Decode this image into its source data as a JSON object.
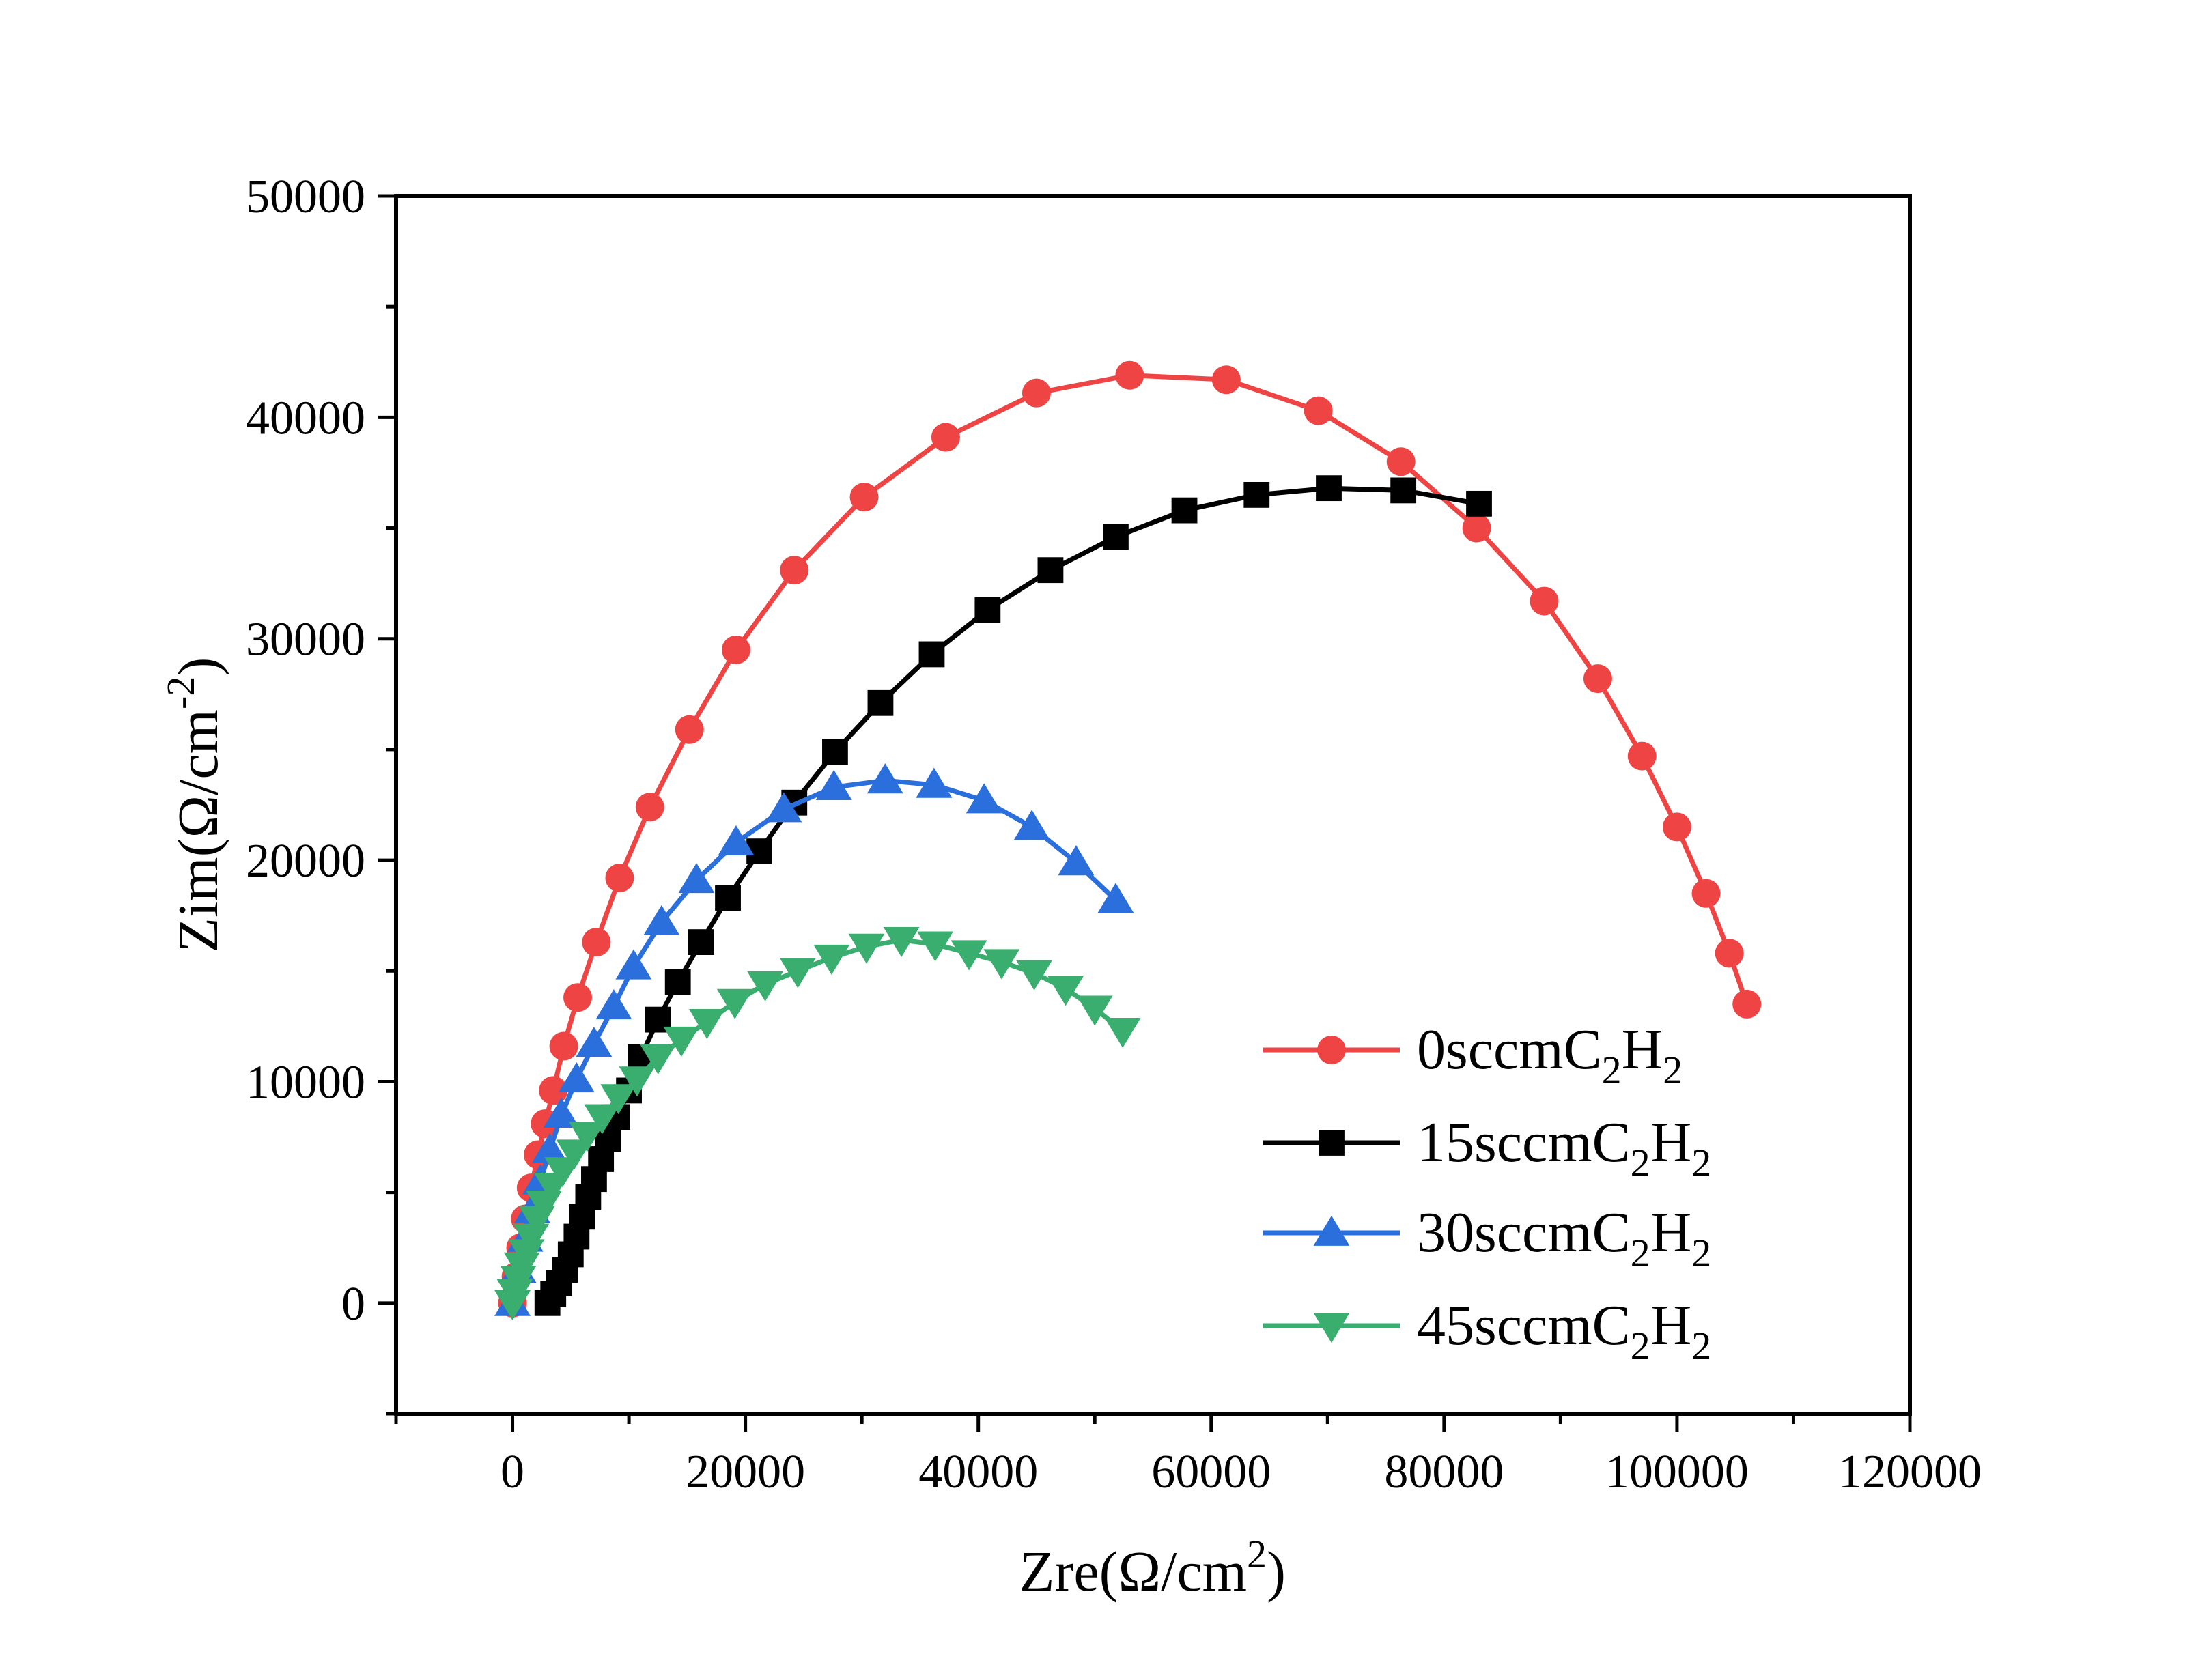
{
  "chart_data": {
    "type": "scatter",
    "xlabel": {
      "base": "Zre(Ω/cm",
      "sup": "2",
      "tail": ")"
    },
    "ylabel": {
      "base": "Zim(Ω/cm",
      "sup": "-2",
      "tail": ")"
    },
    "xlim": [
      -10000,
      120000
    ],
    "ylim": [
      -5000,
      50000
    ],
    "x_ticks": [
      "0",
      "20000",
      "40000",
      "60000",
      "80000",
      "100000",
      "120000"
    ],
    "x_tick_values": [
      0,
      20000,
      40000,
      60000,
      80000,
      100000,
      120000
    ],
    "y_ticks": [
      "0",
      "10000",
      "20000",
      "30000",
      "40000",
      "50000"
    ],
    "y_tick_values": [
      0,
      10000,
      20000,
      30000,
      40000,
      50000
    ],
    "grid": false,
    "legend_position": "bottom-right",
    "series": [
      {
        "legend": {
          "prefix": "0sccmC",
          "s1": "2",
          "mid": "H",
          "s2": "2"
        },
        "color": "#ef4444",
        "marker": "circle",
        "points": [
          [
            0,
            0
          ],
          [
            300,
            1200
          ],
          [
            700,
            2500
          ],
          [
            1100,
            3800
          ],
          [
            1600,
            5200
          ],
          [
            2200,
            6700
          ],
          [
            2800,
            8100
          ],
          [
            3500,
            9600
          ],
          [
            4400,
            11600
          ],
          [
            5600,
            13800
          ],
          [
            7200,
            16300
          ],
          [
            9200,
            19200
          ],
          [
            11800,
            22400
          ],
          [
            15200,
            25900
          ],
          [
            19200,
            29500
          ],
          [
            24200,
            33100
          ],
          [
            30200,
            36400
          ],
          [
            37200,
            39100
          ],
          [
            45000,
            41100
          ],
          [
            53000,
            41900
          ],
          [
            61300,
            41700
          ],
          [
            69200,
            40300
          ],
          [
            76300,
            38000
          ],
          [
            82800,
            35000
          ],
          [
            88600,
            31700
          ],
          [
            93200,
            28200
          ],
          [
            97000,
            24700
          ],
          [
            100000,
            21500
          ],
          [
            102500,
            18500
          ],
          [
            104500,
            15800
          ],
          [
            106000,
            13500
          ]
        ]
      },
      {
        "legend": {
          "prefix": "15sccmC",
          "s1": "2",
          "mid": "H",
          "s2": "2"
        },
        "color": "#000000",
        "marker": "square",
        "points": [
          [
            3000,
            0
          ],
          [
            3500,
            400
          ],
          [
            4000,
            900
          ],
          [
            4500,
            1500
          ],
          [
            5000,
            2200
          ],
          [
            5500,
            3000
          ],
          [
            6000,
            3900
          ],
          [
            6500,
            4800
          ],
          [
            7000,
            5600
          ],
          [
            7600,
            6500
          ],
          [
            8200,
            7400
          ],
          [
            9000,
            8400
          ],
          [
            10000,
            9600
          ],
          [
            11000,
            11100
          ],
          [
            12500,
            12800
          ],
          [
            14200,
            14500
          ],
          [
            16200,
            16300
          ],
          [
            18500,
            18300
          ],
          [
            21200,
            20400
          ],
          [
            24200,
            22600
          ],
          [
            27700,
            24900
          ],
          [
            31600,
            27100
          ],
          [
            36000,
            29300
          ],
          [
            40800,
            31300
          ],
          [
            46200,
            33100
          ],
          [
            51800,
            34600
          ],
          [
            57700,
            35800
          ],
          [
            63900,
            36500
          ],
          [
            70100,
            36800
          ],
          [
            76500,
            36700
          ],
          [
            83000,
            36100
          ]
        ]
      },
      {
        "legend": {
          "prefix": "30sccmC",
          "s1": "2",
          "mid": "H",
          "s2": "2"
        },
        "color": "#2a6fdb",
        "marker": "triangle-up",
        "points": [
          [
            0,
            0
          ],
          [
            500,
            1500
          ],
          [
            1100,
            2900
          ],
          [
            1700,
            4200
          ],
          [
            2400,
            5500
          ],
          [
            3200,
            6900
          ],
          [
            4200,
            8500
          ],
          [
            5500,
            10100
          ],
          [
            7000,
            11700
          ],
          [
            8700,
            13400
          ],
          [
            10400,
            15200
          ],
          [
            12800,
            17200
          ],
          [
            15800,
            19100
          ],
          [
            19200,
            20800
          ],
          [
            23300,
            22300
          ],
          [
            27600,
            23300
          ],
          [
            32000,
            23600
          ],
          [
            36200,
            23400
          ],
          [
            40500,
            22700
          ],
          [
            44600,
            21500
          ],
          [
            48400,
            19900
          ],
          [
            51800,
            18200
          ]
        ]
      },
      {
        "legend": {
          "prefix": "45sccmC",
          "s1": "2",
          "mid": "H",
          "s2": "2"
        },
        "color": "#3aae6e",
        "marker": "triangle-down",
        "points": [
          [
            0,
            0
          ],
          [
            200,
            500
          ],
          [
            500,
            1100
          ],
          [
            800,
            1700
          ],
          [
            1200,
            2300
          ],
          [
            1600,
            3000
          ],
          [
            2100,
            3800
          ],
          [
            2700,
            4500
          ],
          [
            3400,
            5300
          ],
          [
            4300,
            6000
          ],
          [
            5300,
            6800
          ],
          [
            6400,
            7600
          ],
          [
            7700,
            8400
          ],
          [
            9100,
            9300
          ],
          [
            10700,
            10100
          ],
          [
            12500,
            11100
          ],
          [
            14500,
            11900
          ],
          [
            16700,
            12700
          ],
          [
            19100,
            13600
          ],
          [
            21700,
            14400
          ],
          [
            24500,
            15000
          ],
          [
            27400,
            15600
          ],
          [
            30400,
            16100
          ],
          [
            33400,
            16400
          ],
          [
            36300,
            16200
          ],
          [
            39200,
            15800
          ],
          [
            42000,
            15400
          ],
          [
            44800,
            14900
          ],
          [
            47500,
            14200
          ],
          [
            50000,
            13300
          ],
          [
            52400,
            12300
          ]
        ]
      }
    ]
  }
}
